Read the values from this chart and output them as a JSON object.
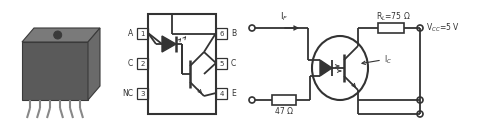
{
  "bg_color": "#ffffff",
  "fig_width": 4.92,
  "fig_height": 1.36,
  "dpi": 100,
  "labels": {
    "IF": "I$_F$",
    "RL": "R$_L$=75 Ω",
    "VCC": "V$_{CC}$=5 V",
    "IC": "I$_C$",
    "R47": "47 Ω",
    "A": "A",
    "B": "B",
    "C_left": "C",
    "C_right": "C",
    "NC": "NC",
    "E": "E",
    "pin1": "1",
    "pin2": "2",
    "pin3": "3",
    "pin4": "4",
    "pin5": "5",
    "pin6": "6"
  }
}
